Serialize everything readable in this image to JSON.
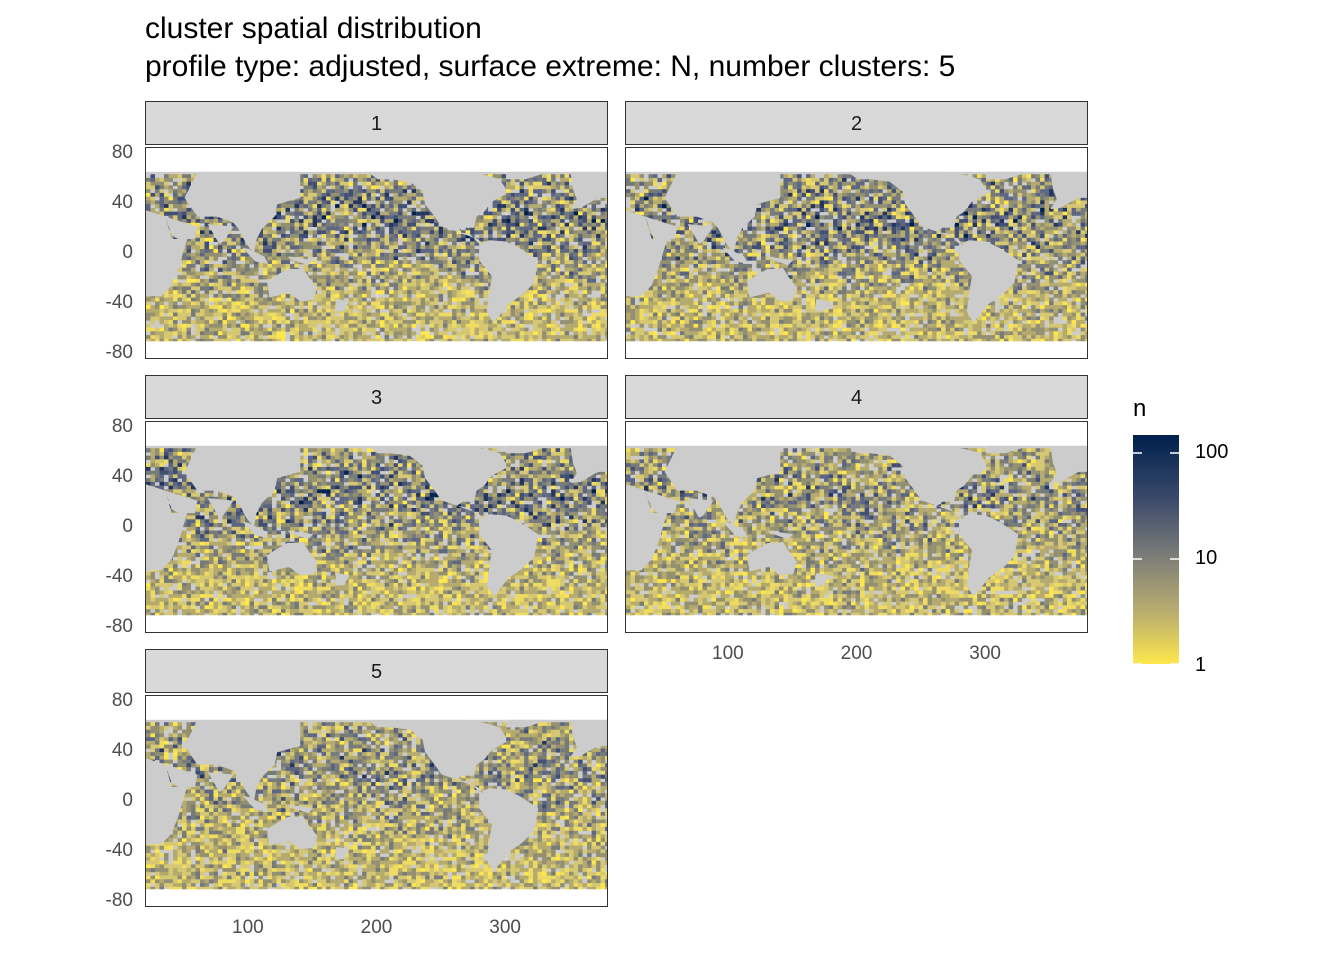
{
  "chart_data": {
    "type": "heatmap",
    "title": "cluster spatial distribution",
    "subtitle": "profile type: adjusted, surface extreme: N, number clusters: 5",
    "facets": [
      "1",
      "2",
      "3",
      "4",
      "5"
    ],
    "xlabel": "",
    "ylabel": "",
    "x_ticks": [
      "100",
      "200",
      "300"
    ],
    "y_ticks": [
      "80",
      "40",
      "0",
      "-40",
      "-80"
    ],
    "xlim": [
      20,
      380
    ],
    "ylim": [
      -85,
      85
    ],
    "grid": true,
    "legend": {
      "title": "n",
      "scale": "log10",
      "breaks": [
        "100",
        "10",
        "1"
      ],
      "range": [
        1,
        150
      ],
      "colors": [
        "#fde74c",
        "#7a7b78",
        "#00204d"
      ],
      "placement": "right"
    },
    "land_color": "#cccccc",
    "no_data_color": "#ffffff"
  }
}
